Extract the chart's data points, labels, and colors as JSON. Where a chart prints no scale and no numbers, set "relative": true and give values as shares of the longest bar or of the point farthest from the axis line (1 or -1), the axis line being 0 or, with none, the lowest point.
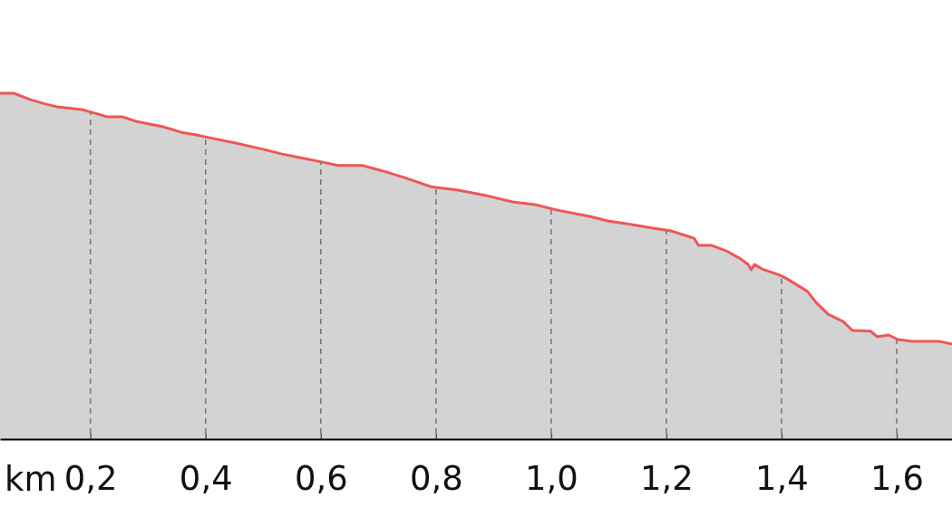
{
  "chart_data": {
    "type": "area",
    "relative": true,
    "xlabel": "km",
    "x": [
      0.043,
      0.067,
      0.095,
      0.122,
      0.142,
      0.185,
      0.2,
      0.229,
      0.255,
      0.279,
      0.326,
      0.358,
      0.382,
      0.405,
      0.452,
      0.5,
      0.531,
      0.563,
      0.594,
      0.63,
      0.673,
      0.704,
      0.744,
      0.791,
      0.838,
      0.893,
      0.933,
      0.972,
      1.011,
      1.067,
      1.098,
      1.13,
      1.177,
      1.208,
      1.248,
      1.256,
      1.279,
      1.303,
      1.326,
      1.342,
      1.347,
      1.353,
      1.366,
      1.397,
      1.41,
      1.445,
      1.46,
      1.481,
      1.507,
      1.523,
      1.555,
      1.566,
      1.586,
      1.602,
      1.626,
      1.673,
      1.696
    ],
    "xlim": [
      0.043,
      1.696
    ],
    "xticks": [
      {
        "value": 0.2,
        "label": "0,2"
      },
      {
        "value": 0.4,
        "label": "0,4"
      },
      {
        "value": 0.6,
        "label": "0,6"
      },
      {
        "value": 0.8,
        "label": "0,8"
      },
      {
        "value": 1.0,
        "label": "1,0"
      },
      {
        "value": 1.2,
        "label": "1,2"
      },
      {
        "value": 1.4,
        "label": "1,4"
      },
      {
        "value": 1.6,
        "label": "1,6"
      }
    ],
    "grid": "x",
    "series": [
      {
        "color": "#ee5757",
        "values": [
          1.0,
          1.0,
          0.982,
          0.969,
          0.961,
          0.953,
          0.946,
          0.932,
          0.932,
          0.919,
          0.903,
          0.887,
          0.88,
          0.872,
          0.856,
          0.838,
          0.825,
          0.814,
          0.804,
          0.791,
          0.791,
          0.777,
          0.757,
          0.73,
          0.72,
          0.702,
          0.686,
          0.678,
          0.662,
          0.644,
          0.631,
          0.623,
          0.61,
          0.602,
          0.581,
          0.56,
          0.56,
          0.545,
          0.524,
          0.505,
          0.49,
          0.505,
          0.492,
          0.474,
          0.463,
          0.427,
          0.395,
          0.361,
          0.34,
          0.314,
          0.312,
          0.296,
          0.301,
          0.288,
          0.283,
          0.283,
          0.275
        ]
      }
    ]
  }
}
